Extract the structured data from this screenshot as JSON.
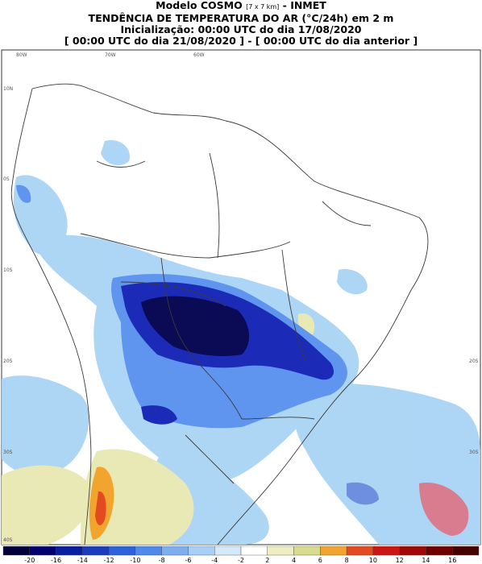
{
  "header": {
    "line1_main": "Modelo COSMO",
    "line1_small": "[7 x 7 km]",
    "line1_tail": "- INMET",
    "line2": "TENDÊNCIA DE TEMPERATURA DO AR (°C/24h) em 2 m",
    "line3": "Inicialização: 00:00 UTC do dia 17/08/2020",
    "line4": "[ 00:00 UTC do dia 21/08/2020 ] - [ 00:00 UTC do dia anterior ]"
  },
  "axes": {
    "top_lon": [
      "80W",
      "70W",
      "60W"
    ],
    "left_lat": [
      "10N",
      "0S",
      "10S",
      "20S",
      "30S",
      "40S"
    ],
    "right_lat": [
      "20S",
      "30S"
    ]
  },
  "legend": {
    "ticks": [
      "-20",
      "-16",
      "-14",
      "-12",
      "-10",
      "-8",
      "-6",
      "-4",
      "-2",
      "2",
      "4",
      "6",
      "8",
      "10",
      "12",
      "14",
      "16"
    ],
    "colors": [
      "#00003a",
      "#00006e",
      "#0b1ea0",
      "#1b3dbd",
      "#2e62db",
      "#5089ea",
      "#7faef0",
      "#a9cff6",
      "#d4eafb",
      "#ffffff",
      "#eeeec2",
      "#d9dc8e",
      "#f2a52e",
      "#e44a1f",
      "#cc1515",
      "#a00808",
      "#700000",
      "#450000"
    ]
  },
  "palette": {
    "land_border": "#3a3a3a",
    "light_blue": "#a9d4f5",
    "mid_blue": "#5f95ee",
    "deep_blue": "#1c2ab8",
    "darkest": "#0a0a55",
    "yellow": "#eeeec2",
    "orange": "#f2a52e",
    "red_ocean": "#d94f6a"
  }
}
